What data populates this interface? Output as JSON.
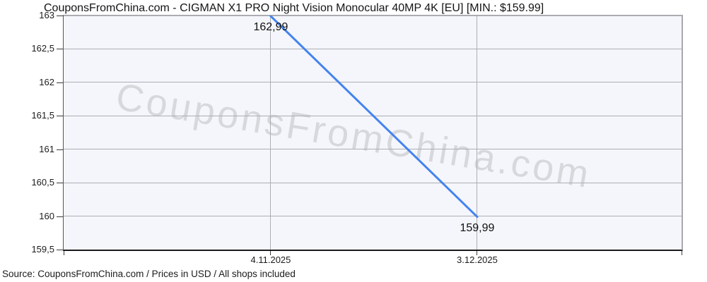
{
  "chart_data": {
    "type": "line",
    "title": "CouponsFromChina.com - CIGMAN X1 PRO Night Vision Monocular 40MP 4K [EU] [MIN.: $159.99]",
    "x": [
      "4.11.2025",
      "3.12.2025"
    ],
    "series": [
      {
        "name": "price",
        "values": [
          162.99,
          159.99
        ]
      }
    ],
    "point_labels": [
      "162,99",
      "159,99"
    ],
    "y_ticks": [
      {
        "label": "163",
        "value": 163
      },
      {
        "label": "162,5",
        "value": 162.5
      },
      {
        "label": "162",
        "value": 162
      },
      {
        "label": "161,5",
        "value": 161.5
      },
      {
        "label": "161",
        "value": 161
      },
      {
        "label": "160,5",
        "value": 160.5
      },
      {
        "label": "160",
        "value": 160
      },
      {
        "label": "159,5",
        "value": 159.5
      }
    ],
    "ylim": [
      159.5,
      163
    ],
    "xlabel": "",
    "ylabel": "",
    "grid": true,
    "legend": "none",
    "currency": "USD",
    "min_price": "$159.99",
    "watermark": "CouponsFromChina.com",
    "source_note": "Source: CouponsFromChina.com / Prices in USD / All shops included",
    "colors": {
      "line": "#4483ef",
      "plot_background": "#f4f6fb",
      "gridline": "#aeaeb3",
      "watermark": "rgba(0,0,0,0.12)"
    }
  }
}
